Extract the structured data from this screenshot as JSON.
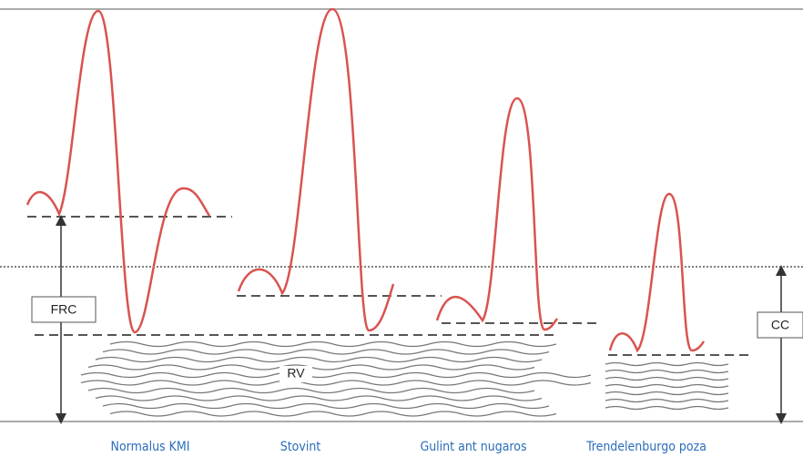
{
  "labels": {
    "frc": "FRC",
    "rv": "RV",
    "cc": "CC"
  },
  "captions": [
    "Normalus KMI",
    "Stovint",
    "Gulint ant nugaros",
    "Trendelenburgo poza"
  ]
}
